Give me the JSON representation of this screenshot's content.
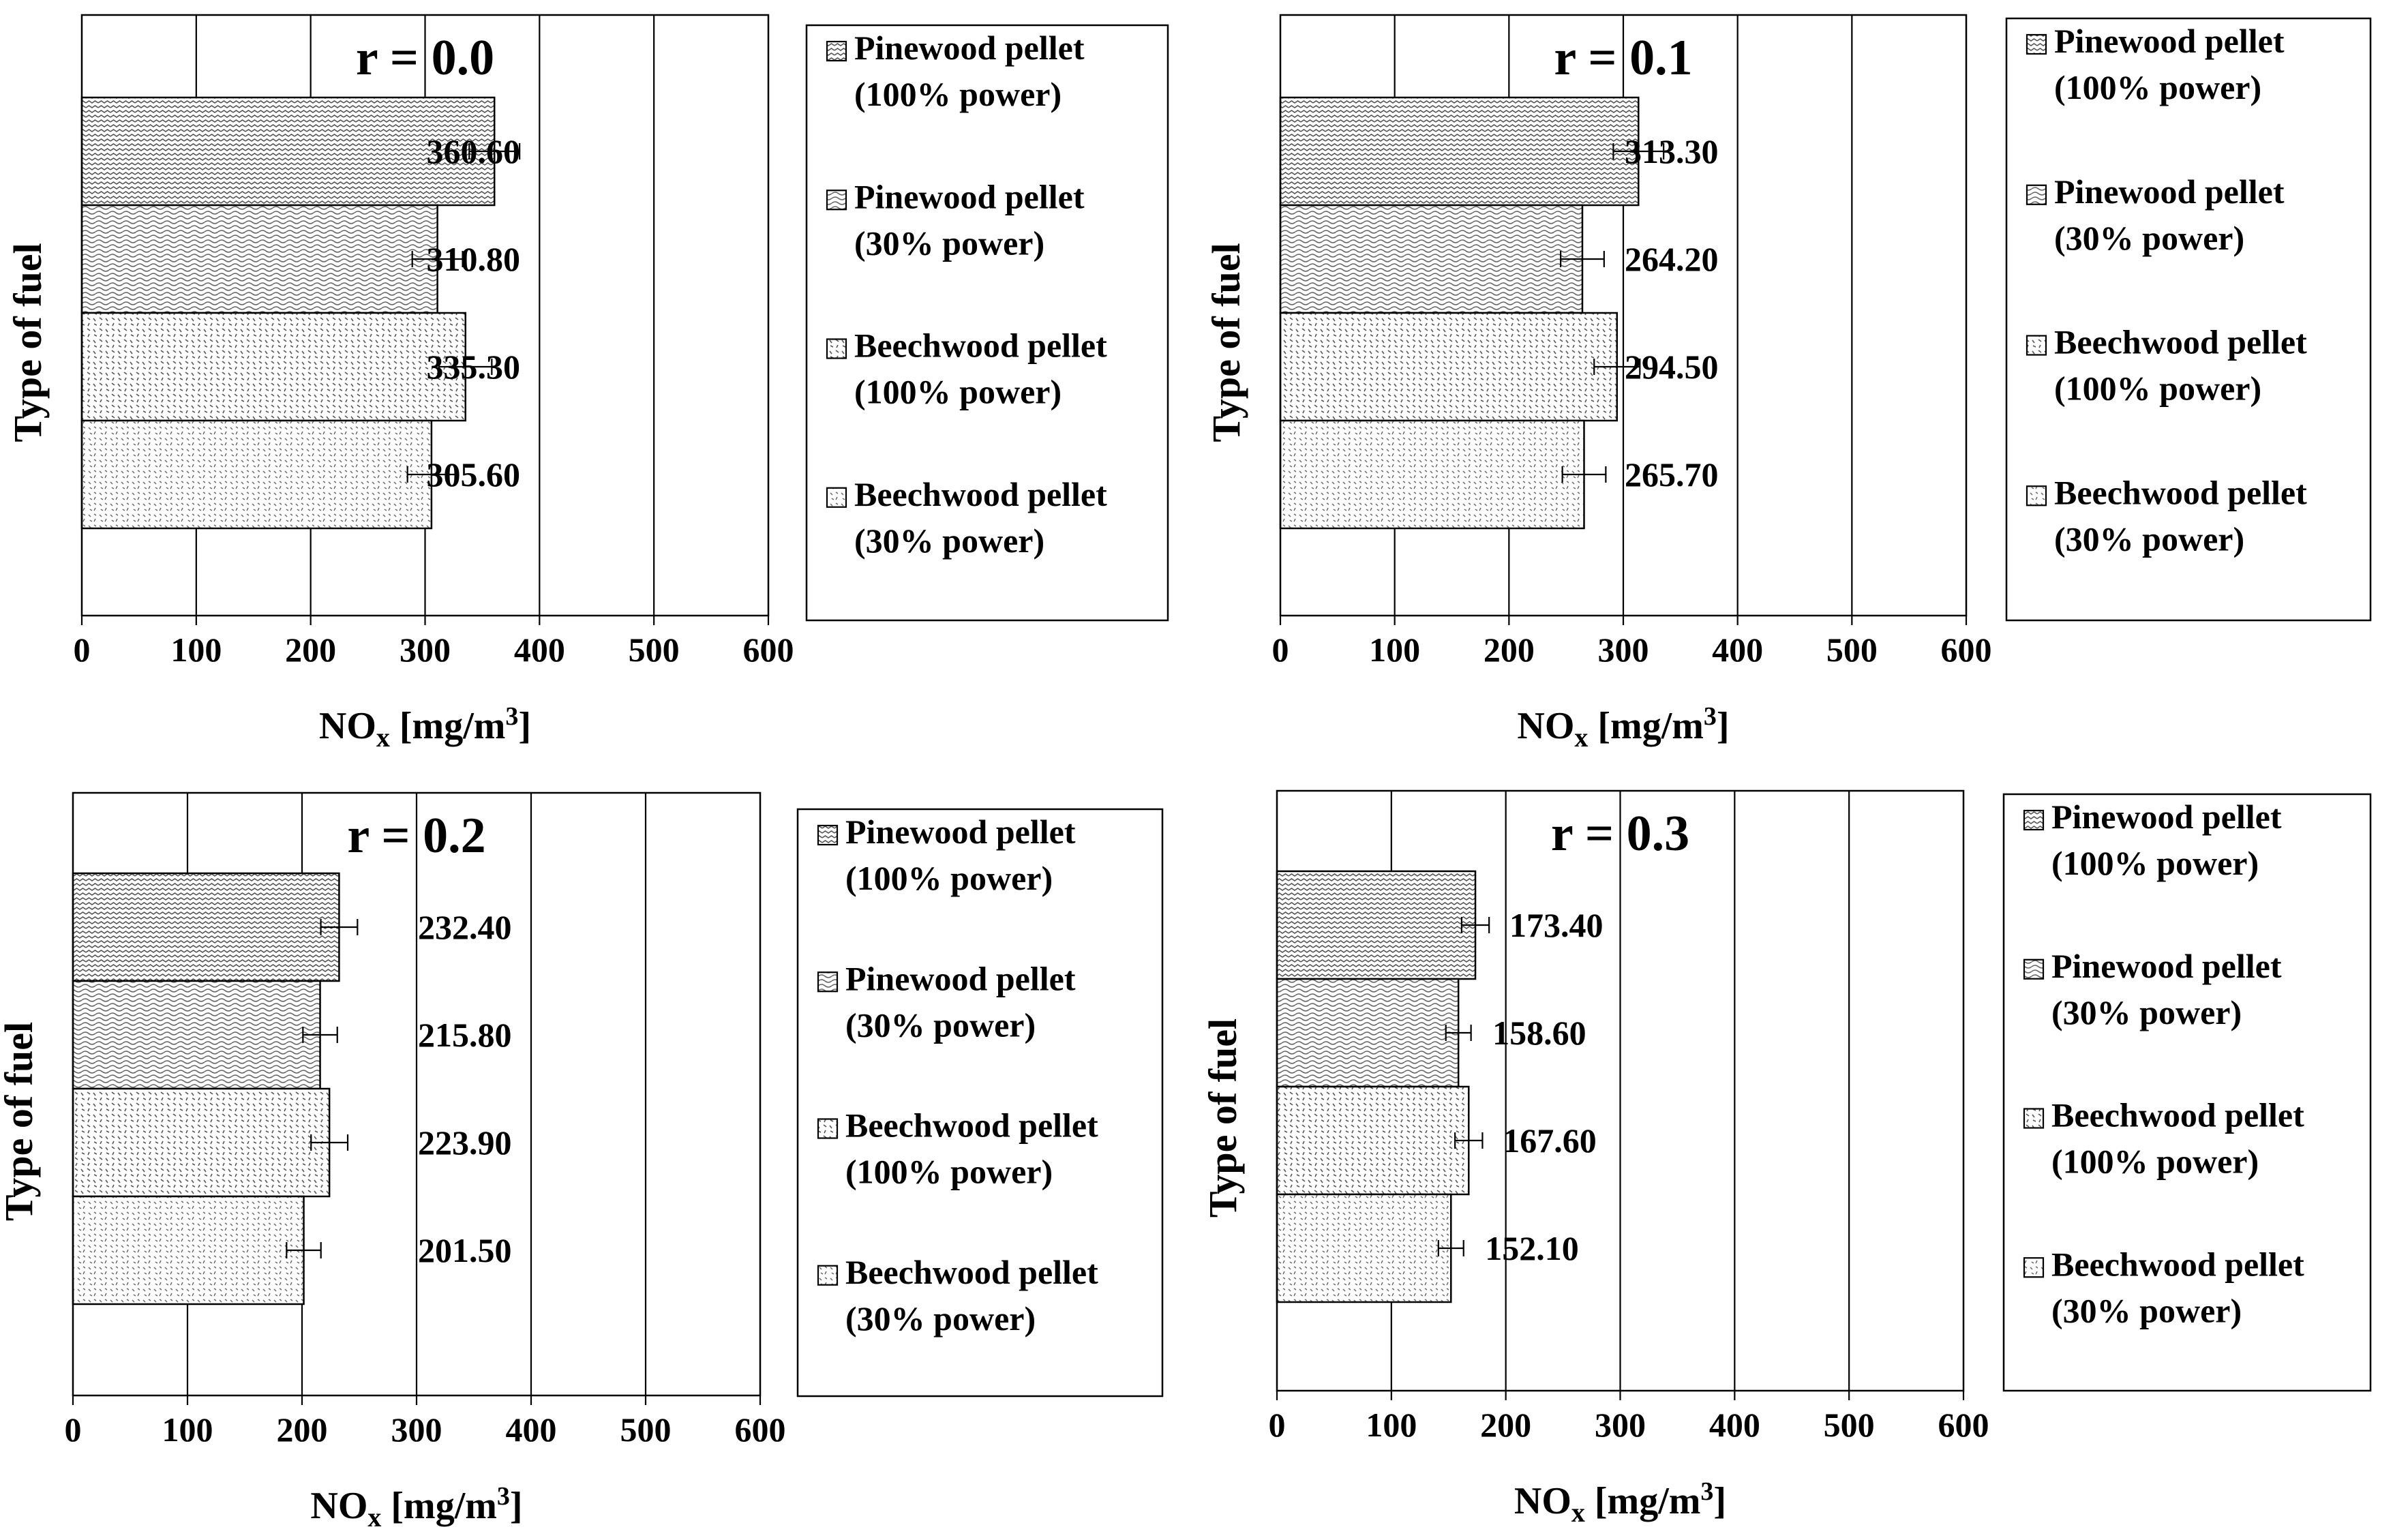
{
  "figure": {
    "colors": {
      "ink": "#000000",
      "background": "#ffffff",
      "pattern_ink": "#555555"
    },
    "legend_entries": [
      {
        "name": "Pinewood pellet",
        "sub": "(100% power)",
        "pattern": "zigzag"
      },
      {
        "name": "Pinewood pellet",
        "sub": "(30% power)",
        "pattern": "wave"
      },
      {
        "name": "Beechwood pellet",
        "sub": "(100% power)",
        "pattern": "dashes"
      },
      {
        "name": "Beechwood pellet",
        "sub": "(30% power)",
        "pattern": "dashes-fine"
      }
    ]
  },
  "chart_data": [
    {
      "type": "bar",
      "orientation": "horizontal",
      "title": "r = 0.0",
      "xlabel": "NO",
      "xlabel_sub": "x",
      "xlabel_unit": " [mg/m",
      "xlabel_sup": "3",
      "xlabel_end": "]",
      "ylabel": "Type of fuel",
      "xlim": [
        0,
        600
      ],
      "xticks": [
        "0",
        "100",
        "200",
        "300",
        "400",
        "500",
        "600"
      ],
      "grid": true,
      "legend": "right",
      "categories": [
        "Pinewood pellet (100% power)",
        "Pinewood pellet (30% power)",
        "Beechwood pellet (100% power)",
        "Beechwood pellet (30% power)"
      ],
      "values": [
        360.6,
        310.8,
        335.3,
        305.6
      ],
      "errors": [
        22,
        22,
        23,
        21
      ],
      "labels": [
        "360.60",
        "310.80",
        "335.30",
        "305.60"
      ]
    },
    {
      "type": "bar",
      "orientation": "horizontal",
      "title": "r = 0.1",
      "xlabel": "NO",
      "xlabel_sub": "x",
      "xlabel_unit": " [mg/m",
      "xlabel_sup": "3",
      "xlabel_end": "]",
      "ylabel": "Type of fuel",
      "xlim": [
        0,
        600
      ],
      "xticks": [
        "0",
        "100",
        "200",
        "300",
        "400",
        "500",
        "600"
      ],
      "grid": true,
      "legend": "right",
      "categories": [
        "Pinewood pellet (100% power)",
        "Pinewood pellet (30% power)",
        "Beechwood pellet (100% power)",
        "Beechwood pellet (30% power)"
      ],
      "values": [
        313.3,
        264.2,
        294.5,
        265.7
      ],
      "errors": [
        22,
        19,
        20,
        19
      ],
      "labels": [
        "313.30",
        "264.20",
        "294.50",
        "265.70"
      ]
    },
    {
      "type": "bar",
      "orientation": "horizontal",
      "title": "r = 0.2",
      "xlabel": "NO",
      "xlabel_sub": "x",
      "xlabel_unit": " [mg/m",
      "xlabel_sup": "3",
      "xlabel_end": "]",
      "ylabel": "Type of fuel",
      "xlim": [
        0,
        600
      ],
      "xticks": [
        "0",
        "100",
        "200",
        "300",
        "400",
        "500",
        "600"
      ],
      "grid": true,
      "legend": "right",
      "categories": [
        "Pinewood pellet (100% power)",
        "Pinewood pellet (30% power)",
        "Beechwood pellet (100% power)",
        "Beechwood pellet (30% power)"
      ],
      "values": [
        232.4,
        215.8,
        223.9,
        201.5
      ],
      "errors": [
        16,
        15,
        16,
        15
      ],
      "labels": [
        "232.40",
        "215.80",
        "223.90",
        "201.50"
      ]
    },
    {
      "type": "bar",
      "orientation": "horizontal",
      "title": "r = 0.3",
      "xlabel": "NO",
      "xlabel_sub": "x",
      "xlabel_unit": " [mg/m",
      "xlabel_sup": "3",
      "xlabel_end": "]",
      "ylabel": "Type of fuel",
      "xlim": [
        0,
        600
      ],
      "xticks": [
        "0",
        "100",
        "200",
        "300",
        "400",
        "500",
        "600"
      ],
      "grid": true,
      "legend": "right",
      "categories": [
        "Pinewood pellet (100% power)",
        "Pinewood pellet (30% power)",
        "Beechwood pellet (100% power)",
        "Beechwood pellet (30% power)"
      ],
      "values": [
        173.4,
        158.6,
        167.6,
        152.1
      ],
      "errors": [
        12,
        11,
        12,
        11
      ],
      "labels": [
        "173.40",
        "158.60",
        "167.60",
        "152.10"
      ]
    }
  ]
}
